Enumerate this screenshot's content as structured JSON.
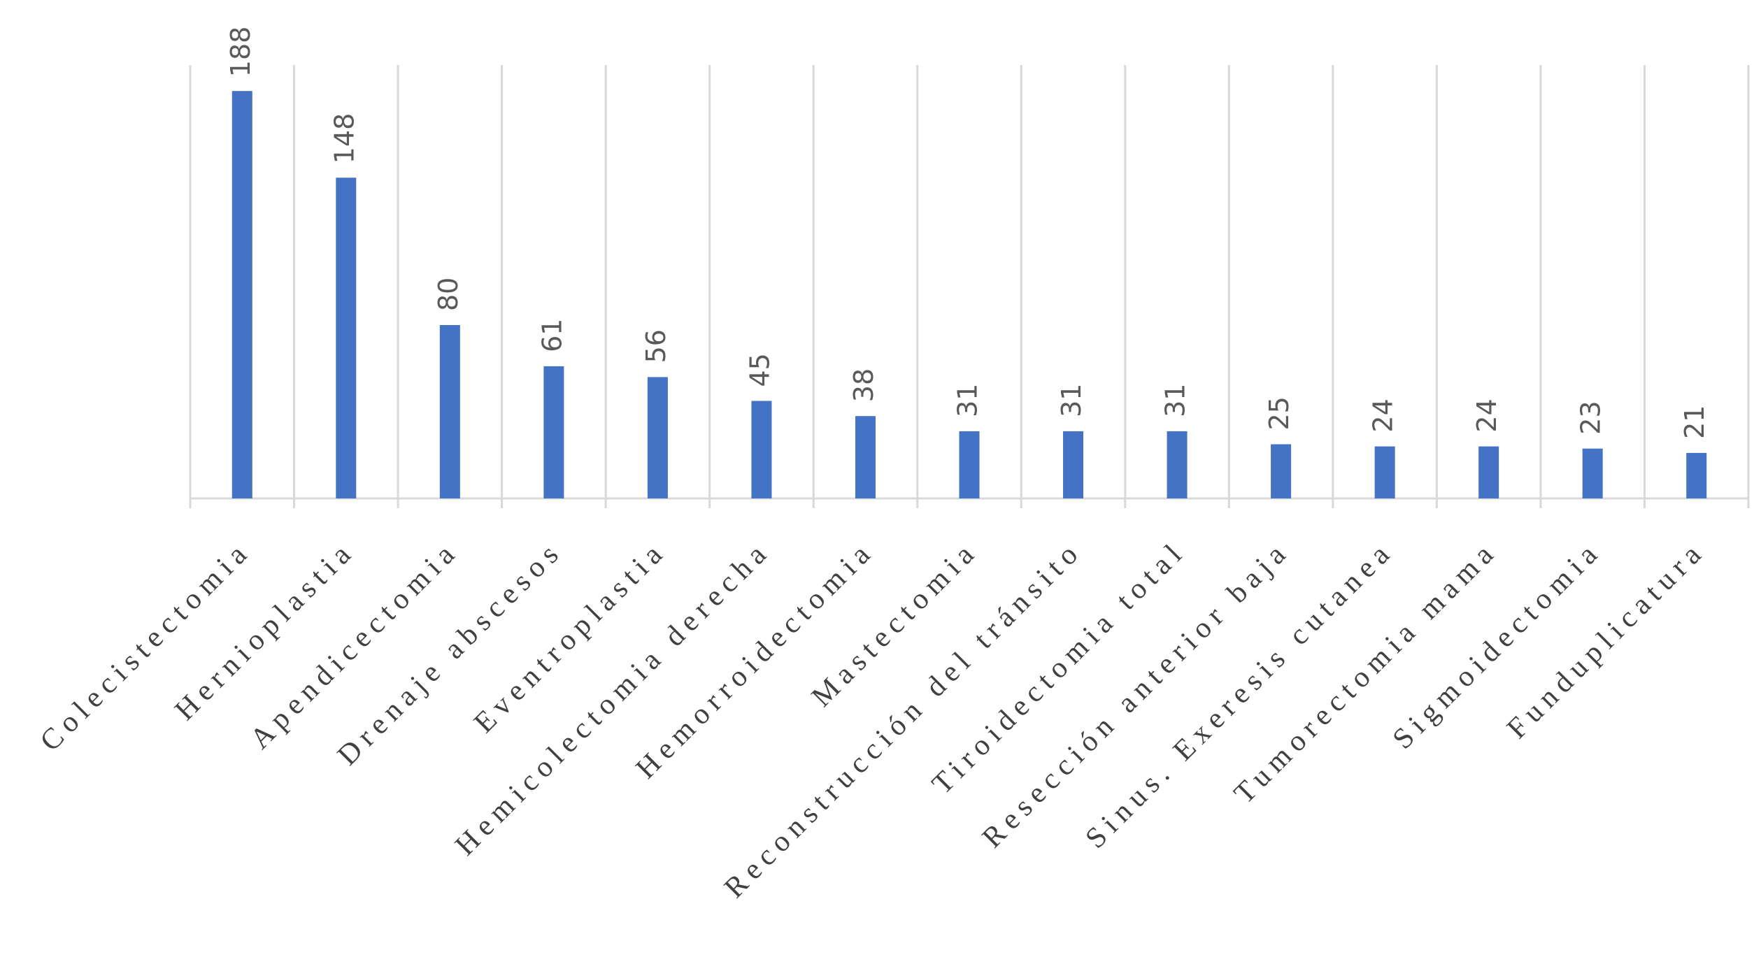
{
  "chart_data": {
    "type": "bar",
    "categories": [
      "Colecistectomia",
      "Hernioplastia",
      "Apendicectomia",
      "Drenaje abscesos",
      "Eventroplastia",
      "Hemicolectomia derecha",
      "Hemorroidectomia",
      "Mastectomia",
      "Reconstrucción del tránsito",
      "Tiroidectomia total",
      "Resección anterior baja",
      "Sinus. Exeresis cutanea",
      "Tumorectomia mama",
      "Sigmoidectomia",
      "Funduplicatura"
    ],
    "values": [
      188,
      148,
      80,
      61,
      56,
      45,
      38,
      31,
      31,
      31,
      25,
      24,
      24,
      23,
      21
    ],
    "color": "#4472c4",
    "ylim": [
      0,
      200
    ]
  }
}
